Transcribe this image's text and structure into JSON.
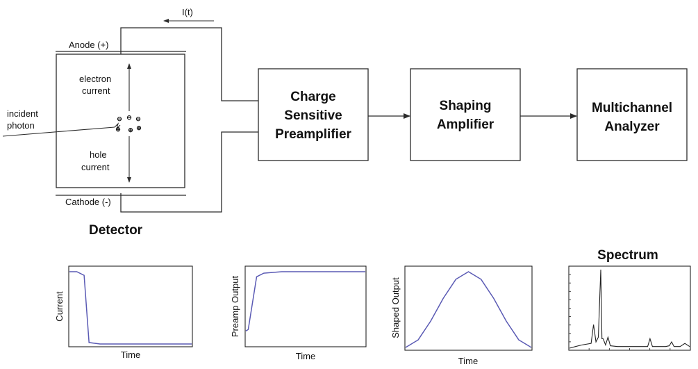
{
  "labels": {
    "current_flow": "I(t)",
    "anode": "Anode (+)",
    "cathode": "Cathode (-)",
    "electron_current_1": "electron",
    "electron_current_2": "current",
    "hole_current_1": "hole",
    "hole_current_2": "current",
    "incident_photon_1": "incident",
    "incident_photon_2": "photon",
    "detector": "Detector",
    "spectrum": "Spectrum",
    "electron_symbol": "⊖",
    "hole_symbol": "⊕"
  },
  "blocks": {
    "preamp_1": "Charge",
    "preamp_2": "Sensitive",
    "preamp_3": "Preamplifier",
    "shaping_1": "Shaping",
    "shaping_2": "Amplifier",
    "mca_1": "Multichannel",
    "mca_2": "Analyzer"
  },
  "plots": {
    "current": {
      "ylabel": "Current",
      "xlabel": "Time"
    },
    "preamp": {
      "ylabel": "Preamp Output",
      "xlabel": "Time"
    },
    "shaped": {
      "ylabel": "Shaped Output",
      "xlabel": "Time"
    }
  },
  "chart_data": [
    {
      "type": "line",
      "ylabel": "Current",
      "xlabel": "Time",
      "x": [
        0,
        0.06,
        0.12,
        0.16,
        0.25,
        1.0
      ],
      "y": [
        1.0,
        1.0,
        0.95,
        0.02,
        0.0,
        0.0
      ]
    },
    {
      "type": "line",
      "ylabel": "Preamp Output",
      "xlabel": "Time",
      "x": [
        0,
        0.02,
        0.09,
        0.15,
        0.3,
        1.0
      ],
      "y": [
        0.18,
        0.2,
        0.93,
        0.98,
        1.0,
        1.0
      ]
    },
    {
      "type": "line",
      "ylabel": "Shaped Output",
      "xlabel": "Time",
      "x": [
        0,
        0.1,
        0.2,
        0.3,
        0.4,
        0.5,
        0.6,
        0.7,
        0.8,
        0.9,
        1.0
      ],
      "y": [
        0.0,
        0.1,
        0.35,
        0.65,
        0.9,
        1.0,
        0.9,
        0.65,
        0.35,
        0.1,
        0.0
      ]
    },
    {
      "type": "line",
      "title": "Spectrum",
      "x": [
        0,
        0.05,
        0.1,
        0.18,
        0.2,
        0.22,
        0.24,
        0.26,
        0.27,
        0.28,
        0.3,
        0.32,
        0.34,
        0.4,
        0.5,
        0.6,
        0.65,
        0.67,
        0.69,
        0.75,
        0.8,
        0.83,
        0.85,
        0.87,
        0.92,
        0.96,
        1.0
      ],
      "y": [
        0.0,
        0.02,
        0.04,
        0.06,
        0.3,
        0.08,
        0.14,
        1.0,
        0.12,
        0.12,
        0.04,
        0.14,
        0.03,
        0.02,
        0.02,
        0.02,
        0.02,
        0.12,
        0.02,
        0.02,
        0.02,
        0.03,
        0.08,
        0.02,
        0.02,
        0.06,
        0.02
      ]
    }
  ]
}
